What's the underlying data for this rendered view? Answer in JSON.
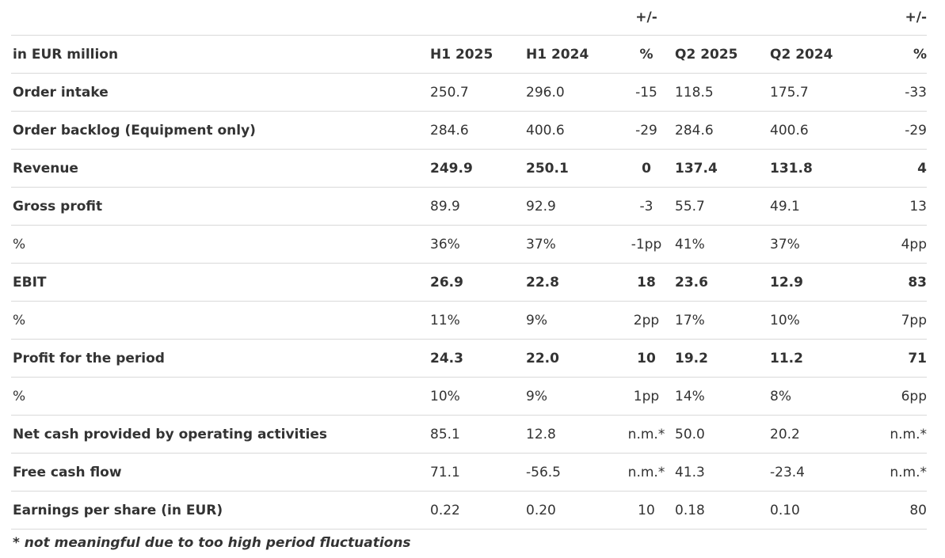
{
  "table": {
    "top_row": [
      "",
      "",
      "",
      "+/-",
      "",
      "",
      "+/-"
    ],
    "header": [
      "in EUR million",
      "H1 2025",
      "H1 2024",
      "%",
      "Q2 2025",
      "Q2 2024",
      "%"
    ],
    "rows": [
      {
        "label": "Order intake",
        "values": [
          "250.7",
          "296.0",
          "-15",
          "118.5",
          "175.7",
          "-33"
        ],
        "bold": false,
        "pct": false
      },
      {
        "label": "Order backlog (Equipment only)",
        "values": [
          "284.6",
          "400.6",
          "-29",
          "284.6",
          "400.6",
          "-29"
        ],
        "bold": false,
        "pct": false
      },
      {
        "label": "Revenue",
        "values": [
          "249.9",
          "250.1",
          "0",
          "137.4",
          "131.8",
          "4"
        ],
        "bold": true,
        "pct": false
      },
      {
        "label": "Gross profit",
        "values": [
          "89.9",
          "92.9",
          "-3",
          "55.7",
          "49.1",
          "13"
        ],
        "bold": false,
        "pct": false
      },
      {
        "label": "%",
        "values": [
          "36%",
          "37%",
          "-1pp",
          "41%",
          "37%",
          "4pp"
        ],
        "bold": false,
        "pct": true
      },
      {
        "label": "EBIT",
        "values": [
          "26.9",
          "22.8",
          "18",
          "23.6",
          "12.9",
          "83"
        ],
        "bold": true,
        "pct": false
      },
      {
        "label": "%",
        "values": [
          "11%",
          "9%",
          "2pp",
          "17%",
          "10%",
          "7pp"
        ],
        "bold": false,
        "pct": true
      },
      {
        "label": "Profit for the period",
        "values": [
          "24.3",
          "22.0",
          "10",
          "19.2",
          "11.2",
          "71"
        ],
        "bold": true,
        "pct": false
      },
      {
        "label": "%",
        "values": [
          "10%",
          "9%",
          "1pp",
          "14%",
          "8%",
          "6pp"
        ],
        "bold": false,
        "pct": true
      },
      {
        "label": "Net cash provided by operating activities",
        "values": [
          "85.1",
          "12.8",
          "n.m.*",
          "50.0",
          "20.2",
          "n.m.*"
        ],
        "bold": false,
        "pct": false
      },
      {
        "label": "Free cash flow",
        "values": [
          "71.1",
          "-56.5",
          "n.m.*",
          "41.3",
          "-23.4",
          "n.m.*"
        ],
        "bold": false,
        "pct": false
      },
      {
        "label": "Earnings per share (in EUR)",
        "values": [
          "0.22",
          "0.20",
          "10",
          "0.18",
          "0.10",
          "80"
        ],
        "bold": false,
        "pct": false
      }
    ]
  },
  "footnote": "* not meaningful  due to too high period fluctuations"
}
